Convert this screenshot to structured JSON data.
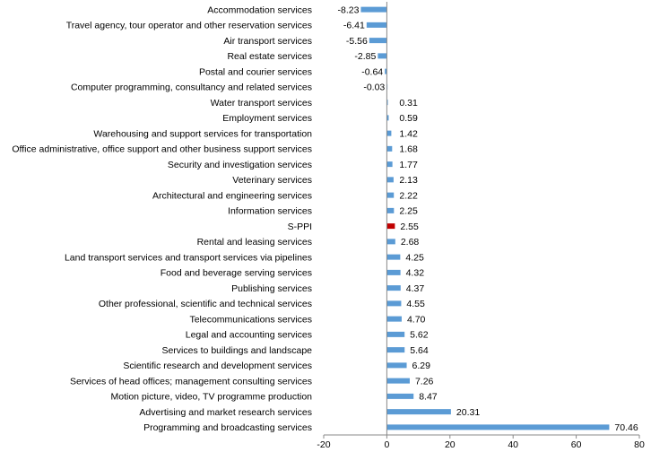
{
  "chart_data": {
    "type": "bar",
    "orientation": "horizontal",
    "categories": [
      "Accommodation services",
      "Travel agency, tour operator and other reservation services",
      "Air transport services",
      "Real estate services",
      "Postal and courier services",
      "Computer programming, consultancy and related services",
      "Water transport services",
      "Employment services",
      "Warehousing and support services for transportation",
      "Office administrative, office support and other business support services",
      "Security and investigation services",
      "Veterinary services",
      "Architectural and engineering services",
      "Information services",
      "S-PPI",
      "Rental and leasing services",
      "Land transport services and transport services via pipelines",
      "Food and beverage serving services",
      "Publishing services",
      "Other professional, scientific and technical services",
      "Telecommunications services",
      "Legal and accounting services",
      "Services to buildings and landscape",
      "Scientific research and development services",
      "Services of head offices; management consulting services",
      "Motion picture, video, TV programme production",
      "Advertising and market research services",
      "Programming and broadcasting services"
    ],
    "values": [
      -8.23,
      -6.41,
      -5.56,
      -2.85,
      -0.64,
      -0.03,
      0.31,
      0.59,
      1.42,
      1.68,
      1.77,
      2.13,
      2.22,
      2.25,
      2.55,
      2.68,
      4.25,
      4.32,
      4.37,
      4.55,
      4.7,
      5.62,
      5.64,
      6.29,
      7.26,
      8.47,
      20.31,
      70.46
    ],
    "value_labels": [
      "-8.23",
      "-6.41",
      "-5.56",
      "-2.85",
      "-0.64",
      "-0.03",
      "0.31",
      "0.59",
      "1.42",
      "1.68",
      "1.77",
      "2.13",
      "2.22",
      "2.25",
      "2.55",
      "2.68",
      "4.25",
      "4.32",
      "4.37",
      "4.55",
      "4.70",
      "5.62",
      "5.64",
      "6.29",
      "7.26",
      "8.47",
      "20.31",
      "70.46"
    ],
    "highlight_category": "S-PPI",
    "xlim": [
      -20,
      80
    ],
    "xticks": [
      -20,
      0,
      20,
      40,
      60,
      80
    ],
    "xtick_labels": [
      "-20",
      "0",
      "20",
      "40",
      "60",
      "80"
    ],
    "grid": false,
    "legend": "none",
    "title": "",
    "xlabel": "",
    "ylabel": "",
    "colors": {
      "bar": "#5b9bd5",
      "highlight": "#c00000",
      "axis": "#888888"
    }
  }
}
